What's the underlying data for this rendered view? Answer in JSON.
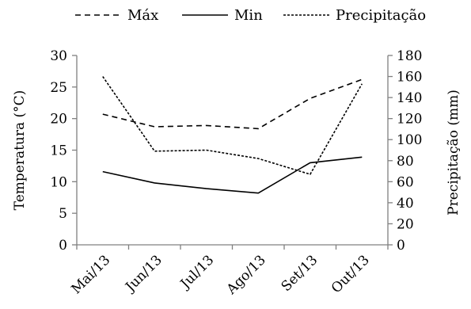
{
  "chart_data": {
    "type": "line",
    "categories": [
      "Mai/13",
      "Jun/13",
      "Jul/13",
      "Ago/13",
      "Set/13",
      "Out/13"
    ],
    "series": [
      {
        "name": "Máx",
        "axis": "left",
        "style": "dashed",
        "values": [
          20.7,
          18.7,
          18.9,
          18.4,
          23.2,
          26.2
        ]
      },
      {
        "name": "Min",
        "axis": "left",
        "style": "solid",
        "values": [
          11.6,
          9.8,
          8.9,
          8.2,
          13.0,
          13.9
        ]
      },
      {
        "name": "Precipitação",
        "axis": "right",
        "style": "dotted",
        "values": [
          160,
          89,
          90,
          82,
          67,
          153
        ]
      }
    ],
    "y_left": {
      "label": "Temperatura (°C)",
      "min": 0,
      "max": 30,
      "ticks": [
        "0",
        "5",
        "10",
        "15",
        "20",
        "25",
        "30"
      ]
    },
    "y_right": {
      "label": "Precipitação (mm)",
      "min": 0,
      "max": 180,
      "ticks": [
        "0",
        "20",
        "40",
        "60",
        "80",
        "100",
        "120",
        "140",
        "160",
        "180"
      ]
    },
    "legend": {
      "placement": "top",
      "entries": [
        "Máx",
        "Min",
        "Precipitação"
      ]
    },
    "grid": false
  }
}
